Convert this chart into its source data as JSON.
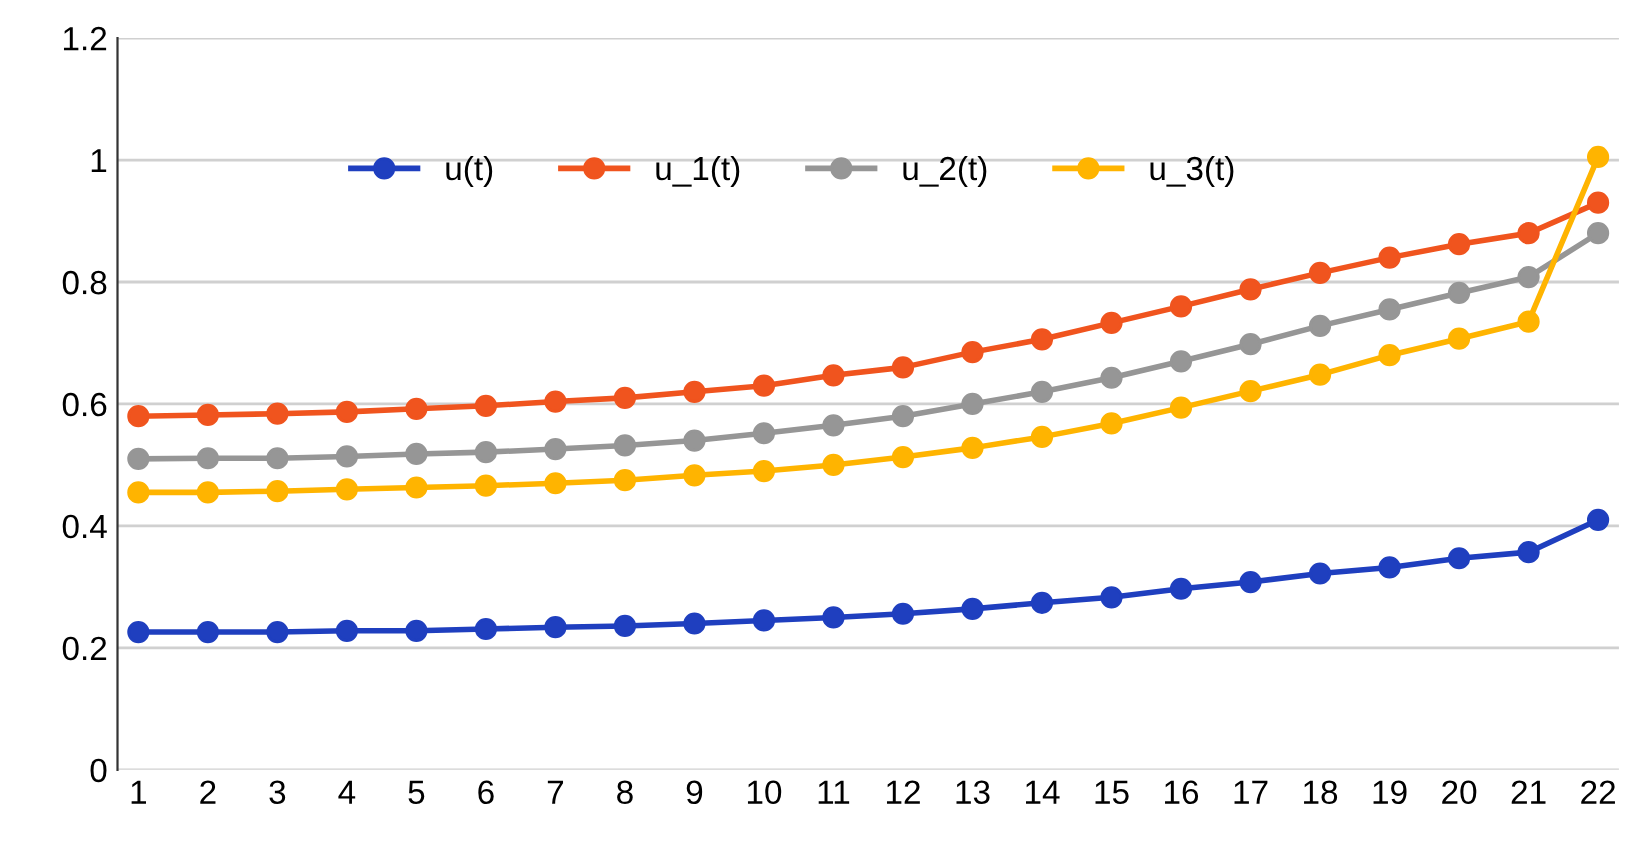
{
  "chart_data": {
    "type": "line",
    "categories": [
      "1",
      "2",
      "3",
      "4",
      "5",
      "6",
      "7",
      "8",
      "9",
      "10",
      "11",
      "12",
      "13",
      "14",
      "15",
      "16",
      "17",
      "18",
      "19",
      "20",
      "21",
      "22"
    ],
    "series": [
      {
        "name": "u(t)",
        "color": "#1f3fbf",
        "values": [
          0.226,
          0.226,
          0.226,
          0.228,
          0.228,
          0.231,
          0.234,
          0.236,
          0.24,
          0.245,
          0.25,
          0.256,
          0.264,
          0.274,
          0.283,
          0.297,
          0.308,
          0.322,
          0.332,
          0.347,
          0.357,
          0.41
        ]
      },
      {
        "name": "u_1(t)",
        "color": "#f0541e",
        "values": [
          0.58,
          0.582,
          0.584,
          0.587,
          0.592,
          0.597,
          0.604,
          0.61,
          0.62,
          0.63,
          0.647,
          0.66,
          0.685,
          0.706,
          0.733,
          0.76,
          0.788,
          0.815,
          0.84,
          0.862,
          0.88,
          0.93
        ]
      },
      {
        "name": "u_2(t)",
        "color": "#969696",
        "values": [
          0.51,
          0.511,
          0.511,
          0.514,
          0.518,
          0.521,
          0.526,
          0.532,
          0.54,
          0.552,
          0.565,
          0.58,
          0.6,
          0.62,
          0.643,
          0.67,
          0.698,
          0.728,
          0.755,
          0.782,
          0.808,
          0.88
        ]
      },
      {
        "name": "u_3(t)",
        "color": "#ffb400",
        "values": [
          0.455,
          0.455,
          0.457,
          0.46,
          0.463,
          0.466,
          0.47,
          0.475,
          0.483,
          0.49,
          0.5,
          0.513,
          0.528,
          0.546,
          0.568,
          0.594,
          0.621,
          0.648,
          0.68,
          0.707,
          0.735,
          1.005
        ]
      }
    ],
    "ylim": [
      0,
      1.2
    ],
    "yticks": [
      0,
      0.2,
      0.4,
      0.6,
      0.8,
      1,
      1.2
    ],
    "grid": "y",
    "legend": "top",
    "marker": "circle",
    "line_style": "solid"
  }
}
